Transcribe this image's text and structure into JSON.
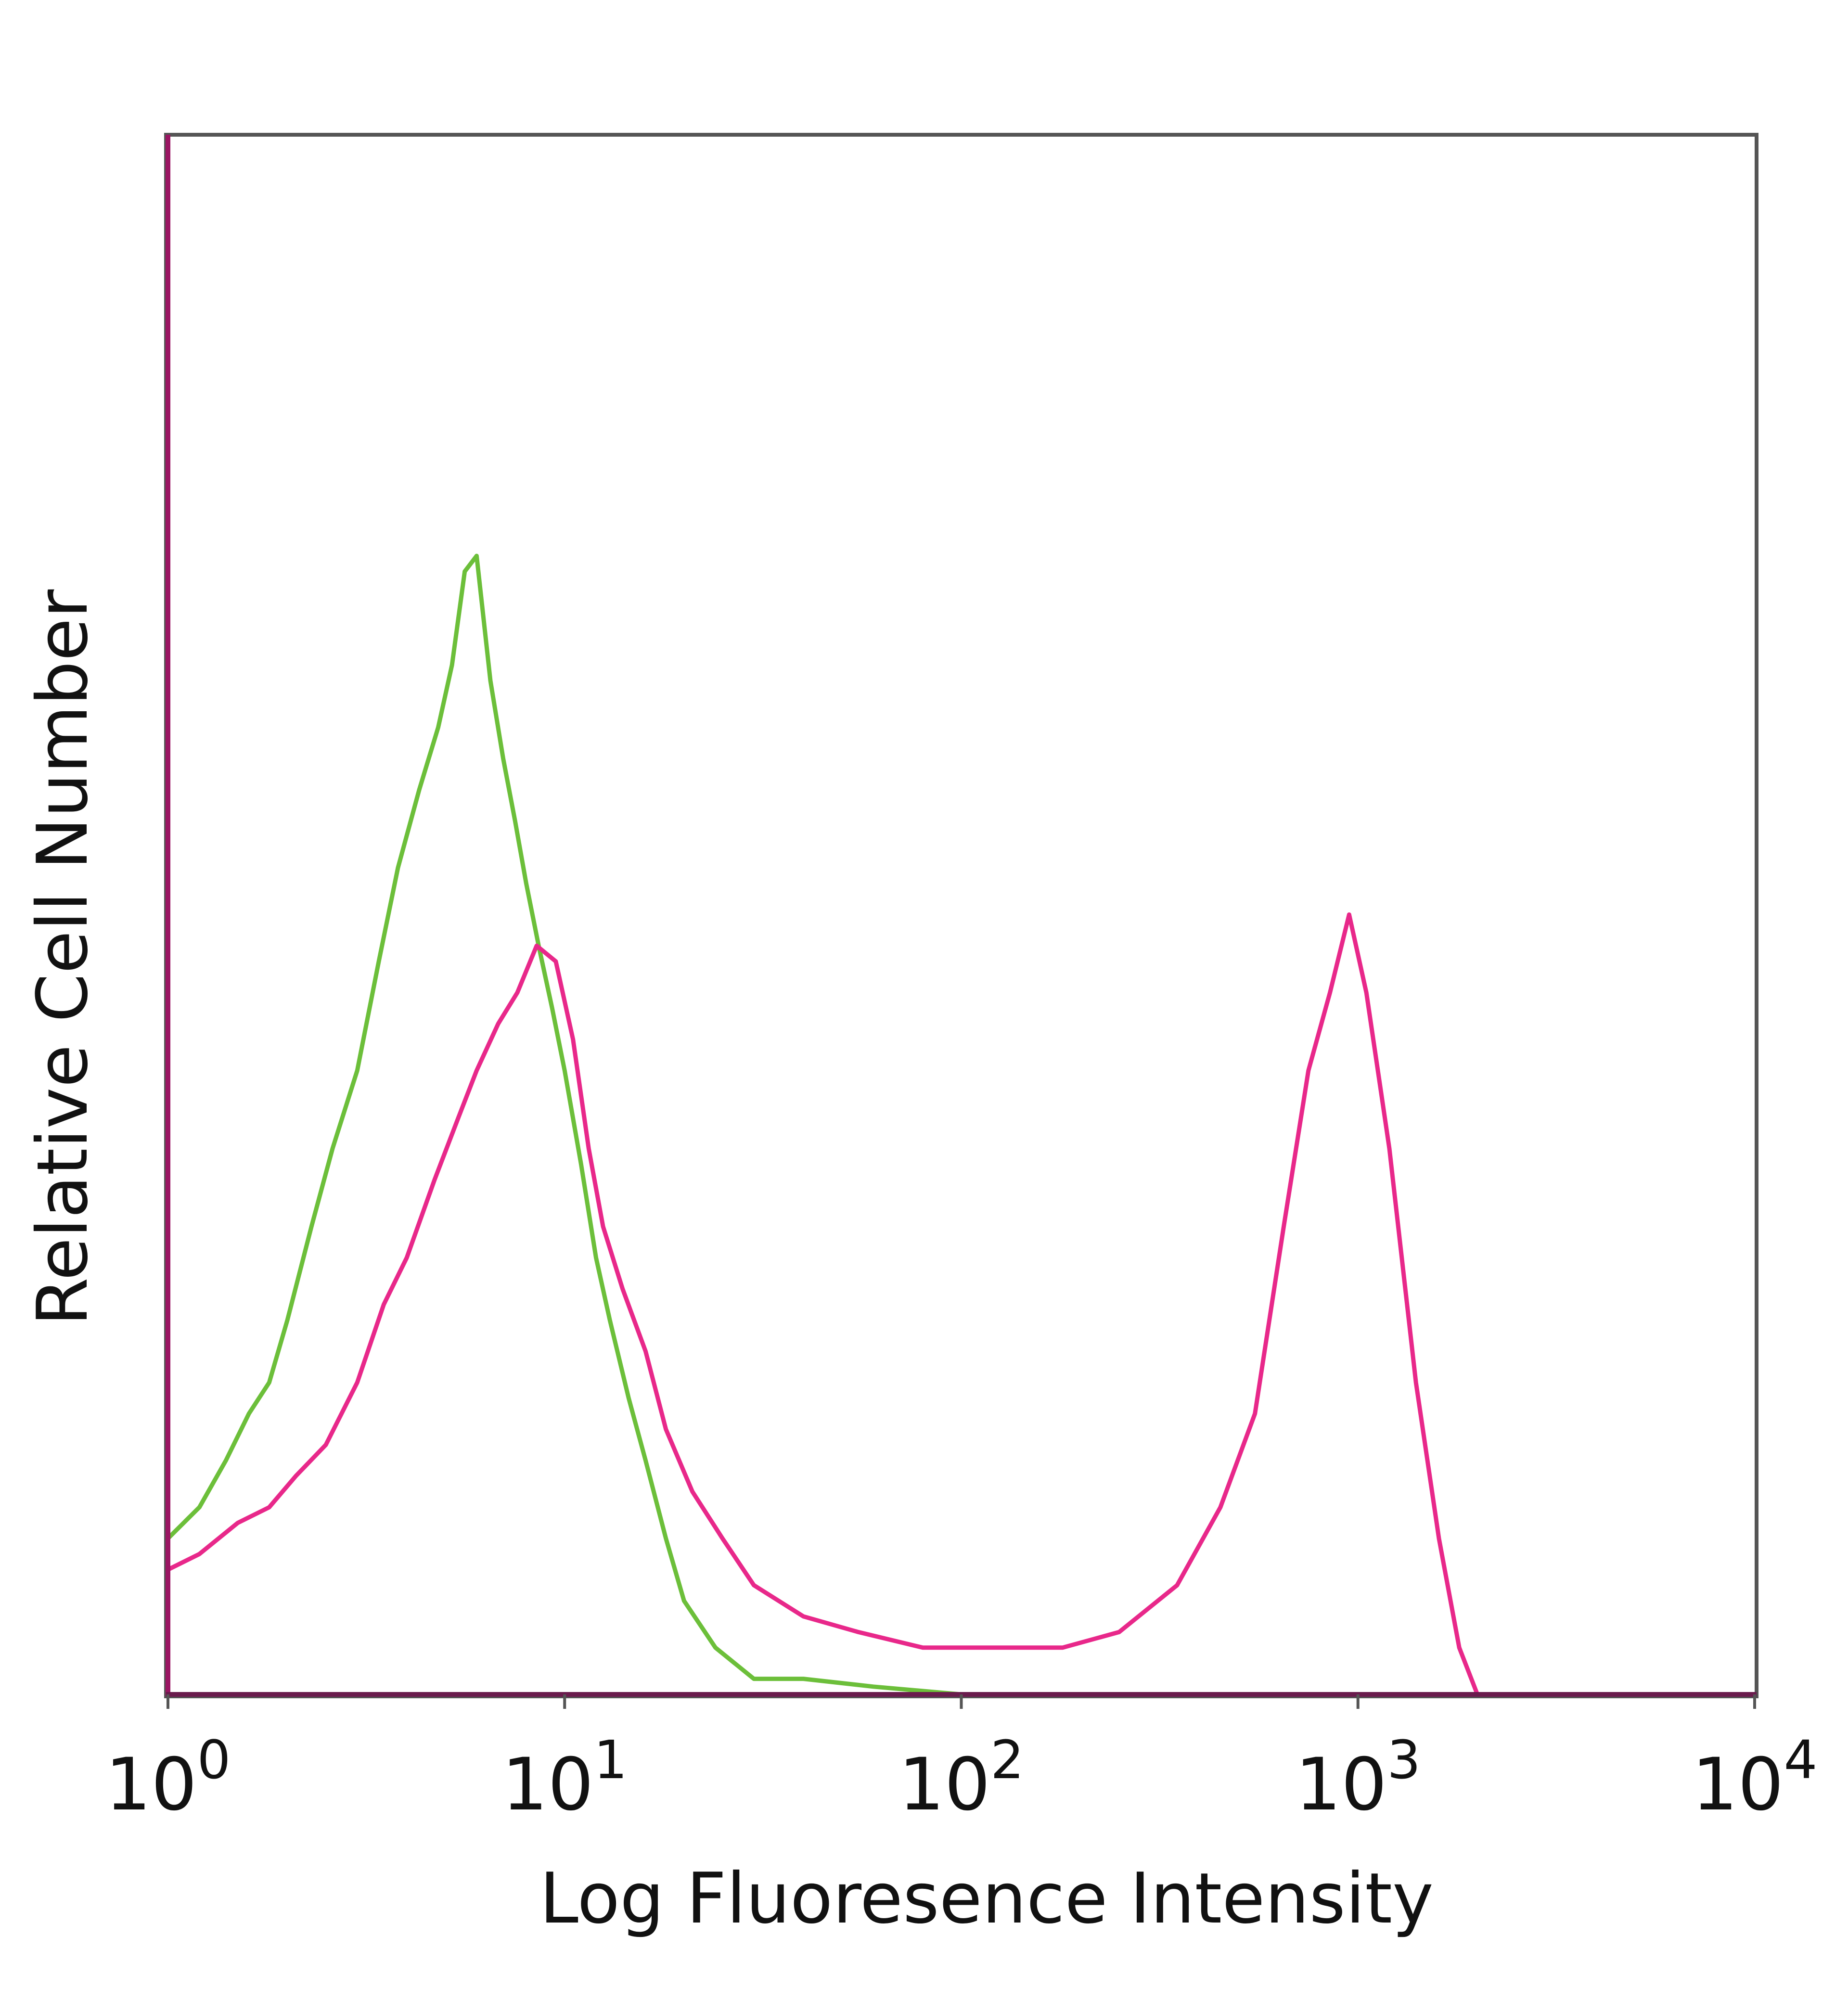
{
  "chart_data": {
    "type": "line",
    "title": "",
    "xlabel": "Log Fluoresence Intensity",
    "ylabel": "Relative Cell Number",
    "x_scale": "log",
    "xlim": [
      1,
      10000
    ],
    "ylim": [
      0,
      100
    ],
    "grid": false,
    "legend": "none",
    "x_ticks": [
      {
        "value": 1,
        "base": "10",
        "exp": "0"
      },
      {
        "value": 10,
        "base": "10",
        "exp": "1"
      },
      {
        "value": 100,
        "base": "10",
        "exp": "2"
      },
      {
        "value": 1000,
        "base": "10",
        "exp": "3"
      },
      {
        "value": 10000,
        "base": "10",
        "exp": "4"
      }
    ],
    "series": [
      {
        "color": "#6cbf3a",
        "x": [
          1.0,
          1.2,
          1.4,
          1.6,
          1.8,
          2.0,
          2.3,
          2.6,
          3.0,
          3.4,
          3.8,
          4.3,
          4.8,
          5.2,
          5.6,
          6.0,
          6.5,
          7.0,
          7.5,
          8.0,
          8.6,
          9.3,
          10.0,
          11.0,
          12.0,
          13.0,
          14.5,
          16.0,
          18.0,
          20.0,
          24.0,
          30.0,
          40.0,
          60.0,
          100.0,
          200.0,
          500.0,
          1000.0,
          10000.0
        ],
        "y": [
          10,
          12,
          15,
          18,
          20,
          24,
          30,
          35,
          40,
          47,
          53,
          58,
          62,
          66,
          72,
          73,
          65,
          60,
          56,
          52,
          48,
          44,
          40,
          34,
          28,
          24,
          19,
          15,
          10,
          6,
          3,
          1,
          1,
          0.5,
          0,
          0,
          0,
          0,
          0
        ]
      },
      {
        "color": "#e8288a",
        "x": [
          1.0,
          1.2,
          1.5,
          1.8,
          2.1,
          2.5,
          3.0,
          3.5,
          4.0,
          4.7,
          5.4,
          6.0,
          6.8,
          7.6,
          8.5,
          9.5,
          10.5,
          11.5,
          12.5,
          14.0,
          16.0,
          18.0,
          21.0,
          25.0,
          30.0,
          40.0,
          55.0,
          80.0,
          120.0,
          180.0,
          250.0,
          350.0,
          450.0,
          550.0,
          650.0,
          750.0,
          850.0,
          950.0,
          1050.0,
          1200.0,
          1400.0,
          1600.0,
          1800.0,
          2000.0,
          10000.0
        ],
        "y": [
          8,
          9,
          11,
          12,
          14,
          16,
          20,
          25,
          28,
          33,
          37,
          40,
          43,
          45,
          48,
          47,
          42,
          35,
          30,
          26,
          22,
          17,
          13,
          10,
          7,
          5,
          4,
          3,
          3,
          3,
          4,
          7,
          12,
          18,
          30,
          40,
          45,
          50,
          45,
          35,
          20,
          10,
          3,
          0,
          0
        ]
      }
    ]
  }
}
